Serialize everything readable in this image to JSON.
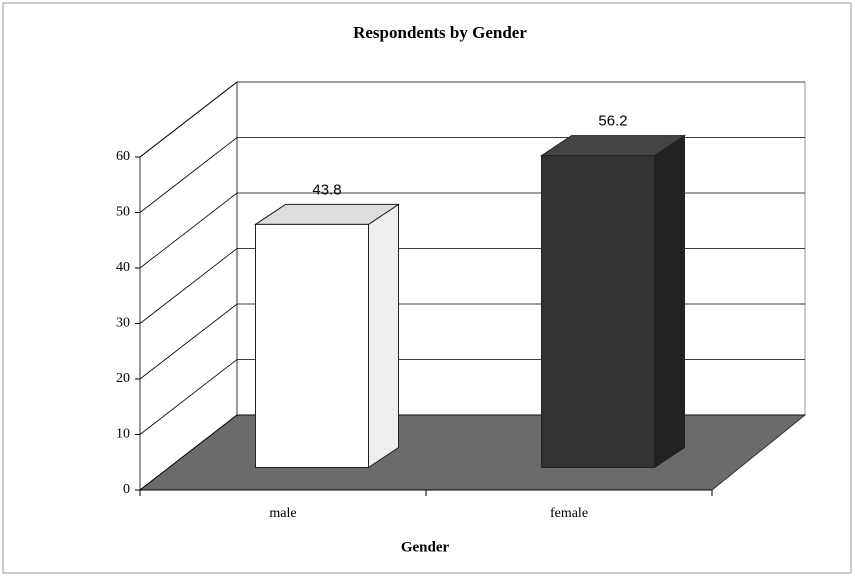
{
  "chart_data": {
    "type": "bar3d",
    "title": "Respondents by Gender",
    "x_label": "Gender",
    "categories": [
      "male",
      "female"
    ],
    "values": [
      43.8,
      56.2
    ],
    "colors": [
      "#ffffff",
      "#333333"
    ],
    "ylim": [
      0,
      60
    ],
    "yticks": [
      0,
      10,
      20,
      30,
      40,
      50,
      60
    ],
    "grid": true
  }
}
